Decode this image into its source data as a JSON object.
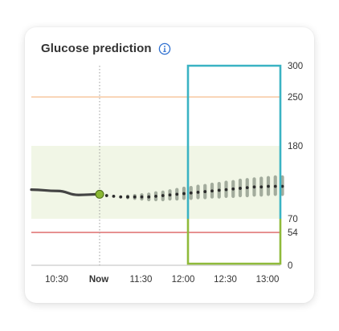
{
  "card": {
    "title": "Glucose prediction",
    "info_icon": "info-circle-icon"
  },
  "chart_data": {
    "type": "line",
    "title": "Glucose prediction",
    "y_ticks": [
      "300",
      "250",
      "180",
      "70",
      "54",
      "0"
    ],
    "y_range": [
      0,
      300
    ],
    "x_ticks": [
      "10:30",
      "Now",
      "11:30",
      "12:00",
      "12:30",
      "13:00"
    ],
    "x_now_label": "Now",
    "target_range": [
      70,
      180
    ],
    "thresholds": [
      {
        "value": 250,
        "color": "#f7c9a1"
      },
      {
        "value": 54,
        "color": "#dd6d6d"
      }
    ],
    "history": [
      {
        "time": "10:15",
        "value": 114
      },
      {
        "time": "10:30",
        "value": 112
      },
      {
        "time": "10:45",
        "value": 106
      },
      {
        "time": "11:00",
        "value": 107
      }
    ],
    "current": {
      "time": "11:00",
      "value": 107
    },
    "prediction": [
      {
        "time": "11:05",
        "value": 105,
        "low": 105,
        "high": 105
      },
      {
        "time": "11:10",
        "value": 104,
        "low": 104,
        "high": 104
      },
      {
        "time": "11:15",
        "value": 103,
        "low": 103,
        "high": 103
      },
      {
        "time": "11:20",
        "value": 103,
        "low": 102,
        "high": 104
      },
      {
        "time": "11:25",
        "value": 103,
        "low": 101,
        "high": 105
      },
      {
        "time": "11:30",
        "value": 103,
        "low": 100,
        "high": 106
      },
      {
        "time": "11:35",
        "value": 103,
        "low": 99,
        "high": 107
      },
      {
        "time": "11:40",
        "value": 104,
        "low": 99,
        "high": 109
      },
      {
        "time": "11:45",
        "value": 105,
        "low": 99,
        "high": 110
      },
      {
        "time": "11:50",
        "value": 106,
        "low": 100,
        "high": 112
      },
      {
        "time": "11:55",
        "value": 107,
        "low": 100,
        "high": 114
      },
      {
        "time": "12:00",
        "value": 108,
        "low": 101,
        "high": 116
      },
      {
        "time": "12:05",
        "value": 109,
        "low": 101,
        "high": 117
      },
      {
        "time": "12:10",
        "value": 110,
        "low": 102,
        "high": 119
      },
      {
        "time": "12:15",
        "value": 111,
        "low": 102,
        "high": 120
      },
      {
        "time": "12:20",
        "value": 112,
        "low": 103,
        "high": 122
      },
      {
        "time": "12:25",
        "value": 113,
        "low": 103,
        "high": 123
      },
      {
        "time": "12:30",
        "value": 114,
        "low": 104,
        "high": 125
      },
      {
        "time": "12:35",
        "value": 115,
        "low": 104,
        "high": 126
      },
      {
        "time": "12:40",
        "value": 116,
        "low": 105,
        "high": 128
      },
      {
        "time": "12:45",
        "value": 117,
        "low": 105,
        "high": 129
      },
      {
        "time": "12:50",
        "value": 118,
        "low": 106,
        "high": 130
      },
      {
        "time": "12:55",
        "value": 118,
        "low": 106,
        "high": 131
      },
      {
        "time": "13:00",
        "value": 119,
        "low": 107,
        "high": 132
      },
      {
        "time": "13:05",
        "value": 119,
        "low": 107,
        "high": 133
      },
      {
        "time": "13:10",
        "value": 119,
        "low": 107,
        "high": 133
      }
    ],
    "highlight_window": {
      "start": "12:00",
      "end": "13:10"
    },
    "colors": {
      "target_band": "#f1f6e6",
      "history_line": "#444444",
      "current_point": "#8ab833",
      "prediction_dot": "#2b2b2b",
      "uncertainty": "#a3ac9d",
      "window_border_top": "#3ab3c3",
      "window_border_bottom": "#8fba3a",
      "axis": "#bdbdbd"
    }
  }
}
